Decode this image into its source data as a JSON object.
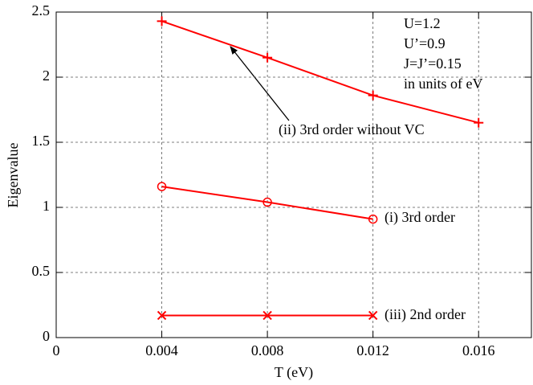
{
  "chart_data": {
    "type": "line",
    "xlabel": "T (eV)",
    "ylabel": "Eigenvalue",
    "xlim": [
      0,
      0.018
    ],
    "ylim": [
      0,
      2.5
    ],
    "xticks": [
      0,
      0.004,
      0.008,
      0.012,
      0.016
    ],
    "yticks": [
      0,
      0.5,
      1,
      1.5,
      2,
      2.5
    ],
    "grid": true,
    "annotations": [
      "U=1.2",
      "U’=0.9",
      "J=J’=0.15",
      "in units of eV"
    ],
    "series": [
      {
        "name": "(ii) 3rd order without VC",
        "color": "#ff0000",
        "marker": "plus",
        "x": [
          0.004,
          0.008,
          0.012,
          0.016
        ],
        "values": [
          2.43,
          2.15,
          1.86,
          1.65
        ]
      },
      {
        "name": "(i) 3rd order",
        "color": "#ff0000",
        "marker": "circle",
        "x": [
          0.004,
          0.008,
          0.012
        ],
        "values": [
          1.16,
          1.04,
          0.91
        ]
      },
      {
        "name": "(iii) 2nd order",
        "color": "#ff0000",
        "marker": "x",
        "x": [
          0.004,
          0.008,
          0.012
        ],
        "values": [
          0.17,
          0.17,
          0.17
        ]
      }
    ]
  }
}
